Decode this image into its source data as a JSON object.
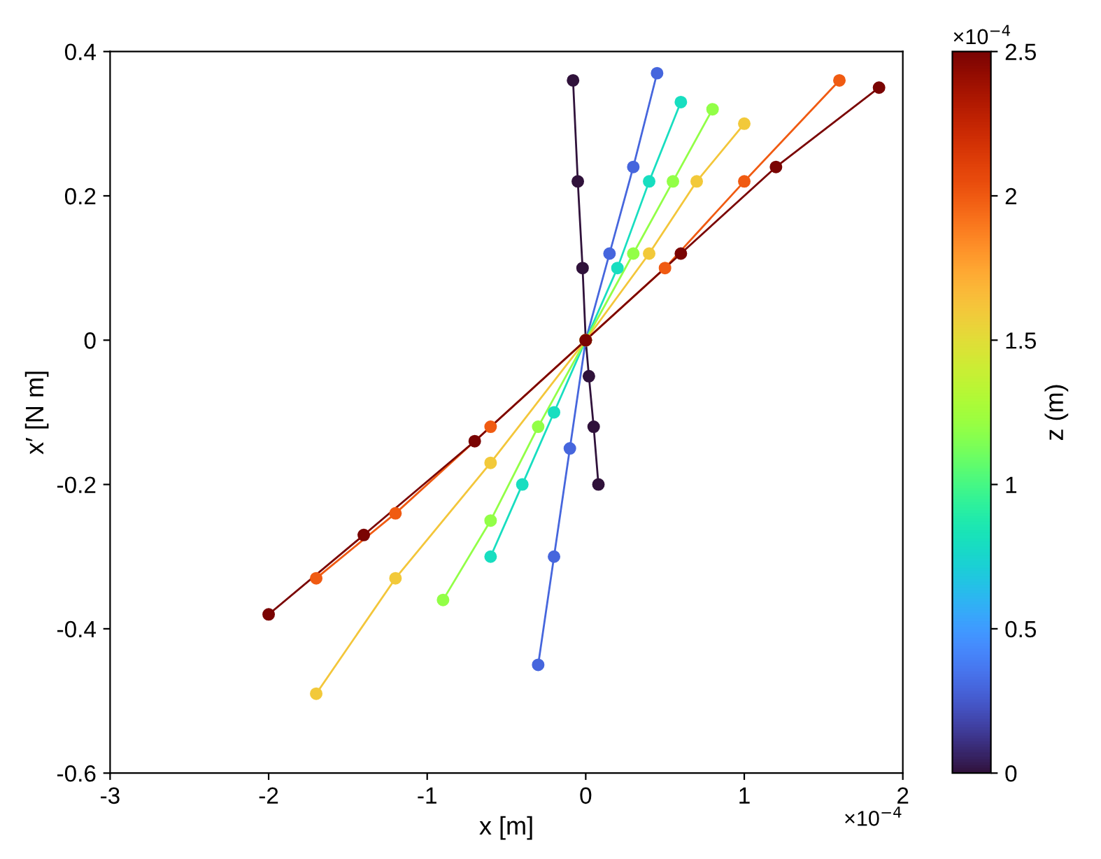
{
  "chart_data": {
    "type": "scatter",
    "xlabel": "x [m]",
    "ylabel": "x′ [N m]",
    "clabel": "z (m)",
    "xlim": [
      -3,
      2
    ],
    "xticks": [
      -3,
      -2,
      -1,
      0,
      1,
      2
    ],
    "ylim": [
      -0.6,
      0.4
    ],
    "yticks": [
      -0.6,
      -0.4,
      -0.2,
      0,
      0.2,
      0.4
    ],
    "clim": [
      0,
      2.5
    ],
    "cticks": [
      0,
      0.5,
      1,
      1.5,
      2,
      2.5
    ],
    "marker": "circle",
    "grid": false,
    "legend": false,
    "annotations": [
      "×10$^{−4}$",
      "×10$^{−4}$"
    ],
    "series": [
      {
        "type": "line",
        "marker": "none",
        "color": "#30123b",
        "x": [
          0.08,
          0.05,
          0.02,
          0,
          -0.02,
          -0.05,
          -0.08
        ],
        "values": [
          -0.2,
          -0.12,
          -0.05,
          0,
          0.1,
          0.22,
          0.36
        ]
      },
      {
        "type": "line",
        "marker": "none",
        "color": "#4666dd",
        "x": [
          -0.3,
          -0.2,
          -0.1,
          0,
          0.15,
          0.3,
          0.45
        ],
        "values": [
          -0.45,
          -0.3,
          -0.15,
          0,
          0.12,
          0.24,
          0.37
        ]
      },
      {
        "type": "line",
        "marker": "none",
        "color": "#18dec0",
        "x": [
          -0.6,
          -0.4,
          -0.2,
          0,
          0.2,
          0.4,
          0.6
        ],
        "values": [
          -0.3,
          -0.2,
          -0.1,
          0,
          0.1,
          0.22,
          0.33
        ]
      },
      {
        "type": "line",
        "marker": "none",
        "color": "#92ff47",
        "x": [
          -0.9,
          -0.6,
          -0.3,
          0,
          0.3,
          0.55,
          0.8
        ],
        "values": [
          -0.36,
          -0.25,
          -0.12,
          0,
          0.12,
          0.22,
          0.32
        ]
      },
      {
        "type": "line",
        "marker": "none",
        "color": "#f3c63a",
        "x": [
          -1.7,
          -1.2,
          -0.6,
          0,
          0.4,
          0.7,
          1.0
        ],
        "values": [
          -0.49,
          -0.33,
          -0.17,
          0,
          0.12,
          0.22,
          0.3
        ]
      },
      {
        "type": "line",
        "marker": "none",
        "color": "#f05b12",
        "x": [
          -1.7,
          -1.2,
          -0.6,
          0,
          0.5,
          1.0,
          1.6
        ],
        "values": [
          -0.33,
          -0.24,
          -0.12,
          0,
          0.1,
          0.22,
          0.36
        ]
      },
      {
        "type": "line",
        "marker": "none",
        "color": "#7a0403",
        "x": [
          -2.0,
          -1.4,
          -0.7,
          0,
          0.6,
          1.2,
          1.85
        ],
        "values": [
          -0.38,
          -0.27,
          -0.14,
          0,
          0.12,
          0.24,
          0.35
        ]
      },
      {
        "x": [
          0.08,
          0.05,
          0.02,
          0,
          -0.02,
          -0.05,
          -0.08
        ],
        "values": [
          -0.2,
          -0.12,
          -0.05,
          0,
          0.1,
          0.22,
          0.36
        ],
        "cvalues": [
          0,
          0,
          0,
          0,
          0,
          0,
          0
        ]
      },
      {
        "x": [
          -0.3,
          -0.2,
          -0.1,
          0,
          0.15,
          0.3,
          0.45
        ],
        "values": [
          -0.45,
          -0.3,
          -0.15,
          0,
          0.12,
          0.24,
          0.37
        ],
        "cvalues": [
          0.3,
          0.3,
          0.3,
          0.3,
          0.3,
          0.3,
          0.3
        ]
      },
      {
        "x": [
          -0.6,
          -0.4,
          -0.2,
          0,
          0.2,
          0.4,
          0.6
        ],
        "values": [
          -0.3,
          -0.2,
          -0.1,
          0,
          0.1,
          0.22,
          0.33
        ],
        "cvalues": [
          0.8,
          0.8,
          0.8,
          0.8,
          0.8,
          0.8,
          0.8
        ]
      },
      {
        "x": [
          -0.9,
          -0.6,
          -0.3,
          0,
          0.3,
          0.55,
          0.8
        ],
        "values": [
          -0.36,
          -0.25,
          -0.12,
          0,
          0.12,
          0.22,
          0.32
        ],
        "cvalues": [
          1.2,
          1.2,
          1.2,
          1.2,
          1.2,
          1.2,
          1.2
        ]
      },
      {
        "x": [
          -1.7,
          -1.2,
          -0.6,
          0,
          0.4,
          0.7,
          1.0
        ],
        "values": [
          -0.49,
          -0.33,
          -0.17,
          0,
          0.12,
          0.22,
          0.3
        ],
        "cvalues": [
          1.6,
          1.6,
          1.6,
          1.6,
          1.6,
          1.6,
          1.6
        ]
      },
      {
        "x": [
          -1.7,
          -1.2,
          -0.6,
          0,
          0.5,
          1.0,
          1.6
        ],
        "values": [
          -0.33,
          -0.24,
          -0.12,
          0,
          0.1,
          0.22,
          0.36
        ],
        "cvalues": [
          2.0,
          2.0,
          2.0,
          2.0,
          2.0,
          2.0,
          2.0
        ]
      },
      {
        "x": [
          -2.0,
          -1.4,
          -0.7,
          0,
          0.6,
          1.2,
          1.85
        ],
        "values": [
          -0.38,
          -0.27,
          -0.14,
          0,
          0.12,
          0.24,
          0.35
        ],
        "cvalues": [
          2.5,
          2.5,
          2.5,
          2.5,
          2.5,
          2.5,
          2.5
        ]
      }
    ]
  }
}
